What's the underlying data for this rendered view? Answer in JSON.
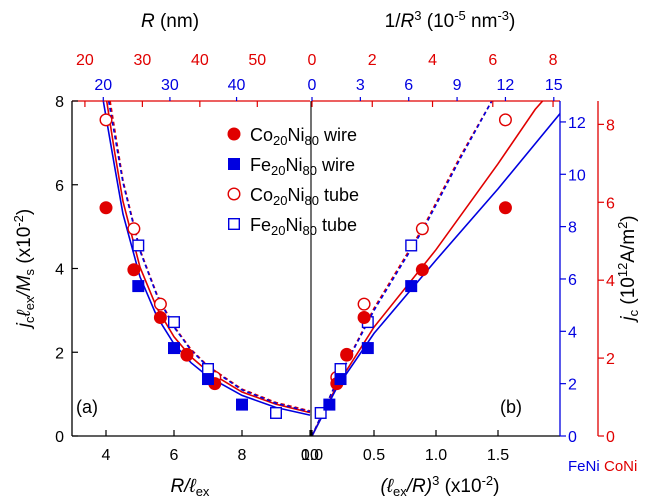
{
  "chart_data": {
    "type": "scatter",
    "colors": {
      "coni": "#e00000",
      "feni": "#0000e0",
      "axis": "#000000"
    },
    "legend": {
      "placement": "top-center",
      "entries": [
        {
          "text": "Co20Ni80 wire",
          "base": "Co",
          "sub1": "20",
          "mid": "Ni",
          "sub2": "80",
          "tail": " wire",
          "marker": "filled-circle",
          "color": "coni"
        },
        {
          "text": "Fe20Ni80 wire",
          "base": "Fe",
          "sub1": "20",
          "mid": "Ni",
          "sub2": "80",
          "tail": " wire",
          "marker": "filled-square",
          "color": "feni"
        },
        {
          "text": "Co20Ni80 tube",
          "base": "Co",
          "sub1": "20",
          "mid": "Ni",
          "sub2": "80",
          "tail": " tube",
          "marker": "open-circle",
          "color": "coni"
        },
        {
          "text": "Fe20Ni80 tube",
          "base": "Fe",
          "sub1": "20",
          "mid": "Ni",
          "sub2": "80",
          "tail": " tube",
          "marker": "open-square",
          "color": "feni"
        }
      ]
    },
    "panels": [
      {
        "id": "a",
        "label": "(a)",
        "x_axis": {
          "label_main": "R/ℓ",
          "label_sub": "ex",
          "xlim": [
            3,
            10
          ],
          "ticks": [
            4,
            6,
            8,
            10
          ],
          "tick_labels": [
            "4",
            "6",
            "8",
            "10"
          ]
        },
        "top_axes": [
          {
            "color": "coni",
            "label_main": "R",
            "label_tail": " (nm)",
            "values": [
              20,
              30,
              40,
              50
            ],
            "tick_labels": [
              "20",
              "30",
              "40",
              "50"
            ],
            "map_to_x": [
              3.38,
              5.07,
              6.76,
              8.45
            ]
          },
          {
            "color": "feni",
            "values": [
              20,
              30,
              40
            ],
            "tick_labels": [
              "20",
              "30",
              "40"
            ],
            "map_to_x": [
              3.92,
              5.88,
              7.84
            ]
          }
        ],
        "series": [
          {
            "name": "Co20Ni80 wire",
            "marker": "filled-circle",
            "color": "coni",
            "points": [
              [
                4.0,
                5.45
              ],
              [
                4.82,
                3.97
              ],
              [
                5.6,
                2.83
              ],
              [
                6.38,
                1.93
              ],
              [
                7.2,
                1.25
              ]
            ]
          },
          {
            "name": "Fe20Ni80 wire",
            "marker": "filled-square",
            "color": "feni",
            "points": [
              [
                4.95,
                3.58
              ],
              [
                6.0,
                2.1
              ],
              [
                7.0,
                1.36
              ],
              [
                8.0,
                0.75
              ]
            ]
          },
          {
            "name": "Co20Ni80 tube",
            "marker": "open-circle",
            "color": "coni",
            "points": [
              [
                4.0,
                7.55
              ],
              [
                4.82,
                4.95
              ],
              [
                5.6,
                3.15
              ],
              [
                6.38,
                1.95
              ],
              [
                7.2,
                1.4
              ]
            ]
          },
          {
            "name": "Fe20Ni80 tube",
            "marker": "open-square",
            "color": "feni",
            "points": [
              [
                4.95,
                4.55
              ],
              [
                6.0,
                2.72
              ],
              [
                7.0,
                1.6
              ],
              [
                9.0,
                0.55
              ]
            ]
          }
        ],
        "curves": [
          {
            "color": "coni",
            "dash": false,
            "points": [
              [
                4.02,
                8.0
              ],
              [
                4.25,
                6.8
              ],
              [
                4.5,
                5.6
              ],
              [
                5.0,
                4.03
              ],
              [
                5.5,
                3.05
              ],
              [
                6.0,
                2.37
              ],
              [
                6.5,
                1.89
              ],
              [
                7.0,
                1.54
              ],
              [
                8.0,
                1.05
              ],
              [
                9.0,
                0.76
              ],
              [
                10.0,
                0.56
              ]
            ]
          },
          {
            "color": "feni",
            "dash": false,
            "points": [
              [
                3.92,
                8.0
              ],
              [
                4.25,
                6.45
              ],
              [
                4.5,
                5.3
              ],
              [
                5.0,
                3.8
              ],
              [
                5.5,
                2.85
              ],
              [
                6.0,
                2.2
              ],
              [
                6.5,
                1.75
              ],
              [
                7.0,
                1.42
              ],
              [
                8.0,
                0.97
              ],
              [
                9.0,
                0.68
              ],
              [
                10.0,
                0.5
              ]
            ]
          },
          {
            "color": "coni",
            "dash": true,
            "points": [
              [
                4.12,
                8.0
              ],
              [
                4.5,
                6.1
              ],
              [
                5.0,
                4.45
              ],
              [
                5.5,
                3.38
              ],
              [
                6.0,
                2.62
              ],
              [
                6.5,
                2.07
              ],
              [
                7.0,
                1.67
              ],
              [
                8.0,
                1.12
              ],
              [
                9.0,
                0.8
              ],
              [
                10.0,
                0.6
              ]
            ]
          },
          {
            "color": "feni",
            "dash": true,
            "points": [
              [
                4.08,
                8.0
              ],
              [
                4.5,
                6.05
              ],
              [
                5.0,
                4.42
              ],
              [
                5.5,
                3.35
              ],
              [
                6.0,
                2.6
              ],
              [
                6.5,
                2.05
              ],
              [
                7.0,
                1.65
              ],
              [
                8.0,
                1.1
              ],
              [
                9.0,
                0.78
              ],
              [
                10.0,
                0.58
              ]
            ]
          }
        ]
      },
      {
        "id": "b",
        "label": "(b)",
        "x_axis": {
          "label_pre": "(ℓ",
          "label_sub": "ex",
          "label_mid": "/R)",
          "label_sup": "3",
          "label_tail": " (x10",
          "label_sup2": "-2",
          "label_end": ")",
          "xlim": [
            0,
            2.0
          ],
          "ticks": [
            0.0,
            0.5,
            1.0,
            1.5
          ],
          "tick_labels": [
            "0.0",
            "0.5",
            "1.0",
            "1.5"
          ]
        },
        "top_axes": [
          {
            "color": "coni",
            "label_pre": "1/",
            "label_main": "R",
            "label_sup": "3",
            "label_tail": " (10",
            "label_sup2": "-5",
            "label_tail2": " nm",
            "label_sup3": "-3",
            "label_end": ")",
            "values": [
              0,
              2,
              4,
              6,
              8
            ],
            "tick_labels": [
              "0",
              "2",
              "4",
              "6",
              "8"
            ],
            "map_to_x": [
              0.0,
              0.486,
              0.972,
              1.458,
              1.944
            ]
          },
          {
            "color": "feni",
            "values": [
              0,
              3,
              6,
              9,
              12,
              15
            ],
            "tick_labels": [
              "0",
              "3",
              "6",
              "9",
              "12",
              "15"
            ],
            "map_to_x": [
              0.0,
              0.39,
              0.78,
              1.17,
              1.56,
              1.95
            ]
          }
        ],
        "series": [
          {
            "name": "Co20Ni80 wire",
            "marker": "filled-circle",
            "color": "coni",
            "points": [
              [
                0.2,
                1.25
              ],
              [
                0.28,
                1.93
              ],
              [
                0.42,
                2.83
              ],
              [
                0.89,
                3.97
              ],
              [
                1.56,
                5.45
              ]
            ]
          },
          {
            "name": "Fe20Ni80 wire",
            "marker": "filled-square",
            "color": "feni",
            "points": [
              [
                0.14,
                0.75
              ],
              [
                0.23,
                1.36
              ],
              [
                0.45,
                2.1
              ],
              [
                0.8,
                3.58
              ]
            ]
          },
          {
            "name": "Co20Ni80 tube",
            "marker": "open-circle",
            "color": "coni",
            "points": [
              [
                0.2,
                1.4
              ],
              [
                0.28,
                1.95
              ],
              [
                0.42,
                3.15
              ],
              [
                0.89,
                4.95
              ],
              [
                1.56,
                7.55
              ]
            ]
          },
          {
            "name": "Fe20Ni80 tube",
            "marker": "open-square",
            "color": "feni",
            "points": [
              [
                0.07,
                0.55
              ],
              [
                0.23,
                1.6
              ],
              [
                0.45,
                2.72
              ],
              [
                0.8,
                4.55
              ]
            ]
          }
        ],
        "curves": [
          {
            "color": "coni",
            "dash": false,
            "points": [
              [
                0.0,
                0.0
              ],
              [
                0.2,
                1.2
              ],
              [
                0.5,
                2.6
              ],
              [
                1.0,
                4.45
              ],
              [
                1.5,
                6.5
              ],
              [
                1.8,
                7.8
              ],
              [
                1.86,
                8.0
              ]
            ]
          },
          {
            "color": "feni",
            "dash": false,
            "points": [
              [
                0.0,
                0.0
              ],
              [
                0.2,
                1.15
              ],
              [
                0.5,
                2.45
              ],
              [
                1.0,
                4.2
              ],
              [
                1.5,
                5.9
              ],
              [
                2.0,
                7.7
              ],
              [
                2.05,
                8.0
              ]
            ]
          },
          {
            "color": "coni",
            "dash": true,
            "points": [
              [
                0.0,
                0.0
              ],
              [
                0.2,
                1.3
              ],
              [
                0.5,
                3.05
              ],
              [
                0.9,
                5.0
              ],
              [
                1.2,
                6.7
              ],
              [
                1.45,
                8.0
              ]
            ]
          },
          {
            "color": "feni",
            "dash": true,
            "points": [
              [
                0.0,
                0.0
              ],
              [
                0.2,
                1.3
              ],
              [
                0.5,
                3.0
              ],
              [
                0.9,
                4.95
              ],
              [
                1.2,
                6.65
              ],
              [
                1.45,
                8.0
              ]
            ]
          }
        ]
      }
    ],
    "left_axis": {
      "label_j": "j",
      "label_jsub": "c",
      "label_l": "ℓ",
      "label_lsub": "ex",
      "label_over": "/M",
      "label_msub": "s",
      "label_tail": " (x10",
      "label_sup": "-2",
      "label_end": ")",
      "ylim": [
        0,
        8
      ],
      "ticks": [
        0,
        2,
        4,
        6,
        8
      ],
      "tick_labels": [
        "0",
        "2",
        "4",
        "6",
        "8"
      ]
    },
    "right_axes": [
      {
        "color": "feni",
        "name": "FeNi",
        "ylim": [
          0,
          12.8
        ],
        "ticks": [
          0,
          2,
          4,
          6,
          8,
          10,
          12
        ],
        "tick_labels": [
          "0",
          "2",
          "4",
          "6",
          "8",
          "10",
          "12"
        ]
      },
      {
        "color": "coni",
        "name": "CoNi",
        "label_j": "j",
        "label_sub": "c",
        "label_tail": " (10",
        "label_sup": "12",
        "label_tail2": "A/m",
        "label_sup2": "2",
        "label_end": ")",
        "ylim": [
          0,
          8.6
        ],
        "ticks": [
          0,
          2,
          4,
          6,
          8
        ],
        "tick_labels": [
          "0",
          "2",
          "4",
          "6",
          "8"
        ]
      }
    ]
  }
}
